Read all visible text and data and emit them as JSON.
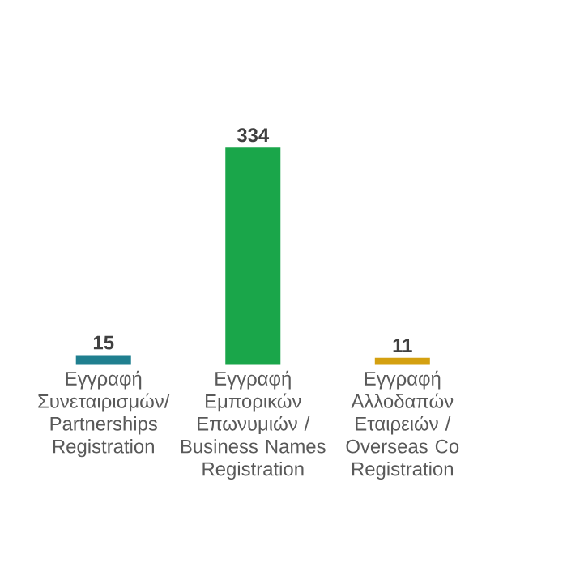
{
  "chart_data": {
    "type": "bar",
    "categories": [
      "Εγγραφή Συνεταιρισμών/ Partnerships Registration",
      "Εγγραφή Εμπορικών Επωνυμιών / Business Names Registration",
      "Εγγραφή Αλλοδαπών Εταιρειών / Overseas Co Registration"
    ],
    "values": [
      15,
      334,
      11
    ],
    "colors": [
      "#1f7f8f",
      "#1aa64a",
      "#d4a010"
    ],
    "data_labels": true
  }
}
